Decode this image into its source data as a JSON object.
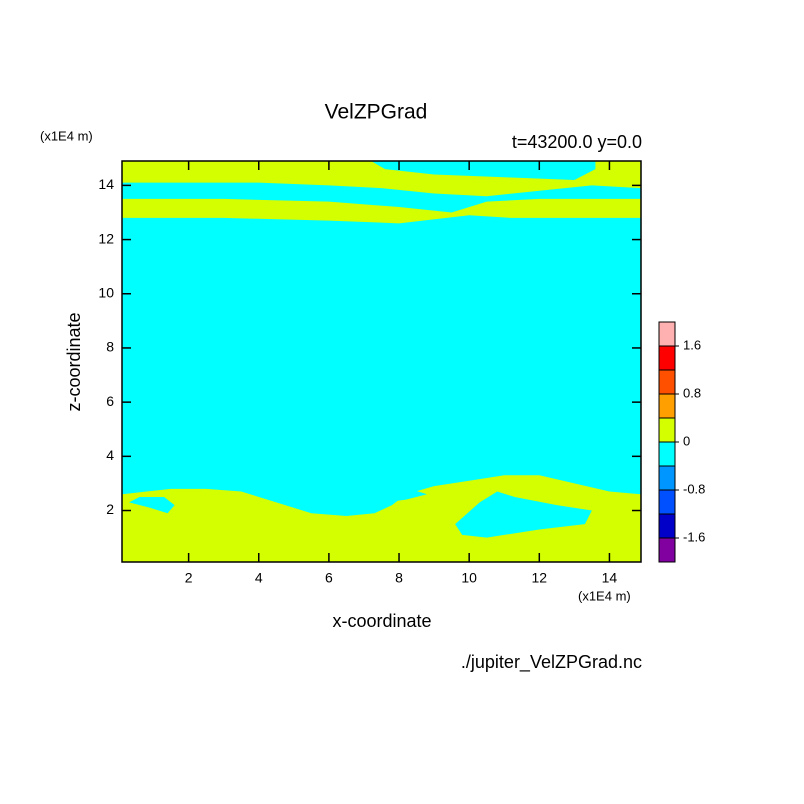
{
  "chart_data": {
    "type": "contour",
    "title": "VelZPGrad",
    "subtitle": "t=43200.0  y=0.0",
    "x_label": "x-coordinate",
    "y_label": "z-coordinate",
    "x_unit": "(x1E4 m)",
    "y_unit": "(x1E4 m)",
    "footer": "./jupiter_VelZPGrad.nc",
    "xlim": [
      0.1,
      14.9
    ],
    "ylim": [
      0.1,
      14.9
    ],
    "xticks": [
      2,
      4,
      6,
      8,
      10,
      12,
      14
    ],
    "yticks": [
      2,
      4,
      6,
      8,
      10,
      12,
      14
    ],
    "background_color": "#00ffff",
    "regions": [
      {
        "color": "#d4ff00",
        "x": [
          0.1,
          0.8,
          1.5,
          2.5,
          3.5,
          4.5,
          5.5,
          6.5,
          7.3,
          7.8,
          8.2,
          9.0,
          10.0,
          11.0,
          12.0,
          13.0,
          14.0,
          14.9,
          14.9,
          0.1
        ],
        "z": [
          2.6,
          2.7,
          2.8,
          2.8,
          2.7,
          2.3,
          1.9,
          1.8,
          1.9,
          2.2,
          2.6,
          2.9,
          3.1,
          3.3,
          3.3,
          3.0,
          2.7,
          2.6,
          0.1,
          0.1
        ]
      },
      {
        "color": "#00ffff",
        "x": [
          0.3,
          0.9,
          1.4,
          1.6,
          1.3,
          0.6
        ],
        "z": [
          2.3,
          2.1,
          1.9,
          2.2,
          2.5,
          2.5
        ]
      },
      {
        "color": "#00ffff",
        "x": [
          9.6,
          10.3,
          10.8,
          11.3,
          12.5,
          13.5,
          13.3,
          12.0,
          10.5,
          9.8
        ],
        "z": [
          1.5,
          2.3,
          2.7,
          2.5,
          2.2,
          2.0,
          1.5,
          1.3,
          1.0,
          1.1
        ]
      },
      {
        "color": "#00ffff",
        "x": [
          7.2,
          7.6,
          8.2,
          8.8,
          8.3,
          7.5
        ],
        "z": [
          2.5,
          2.3,
          2.4,
          2.6,
          2.8,
          2.8
        ]
      },
      {
        "color": "#d4ff00",
        "x": [
          0.1,
          7.2,
          7.6,
          9.0,
          11.0,
          13.0,
          13.6,
          13.6,
          14.9,
          14.9,
          13.5,
          12.0,
          10.5,
          9.0,
          7.5,
          6.0,
          4.0,
          2.0,
          0.1
        ],
        "z": [
          14.9,
          14.9,
          14.6,
          14.4,
          14.3,
          14.2,
          14.6,
          14.9,
          14.9,
          13.9,
          14.0,
          13.8,
          13.6,
          13.7,
          13.9,
          14.0,
          14.1,
          14.1,
          14.1
        ]
      },
      {
        "color": "#d4ff00",
        "x": [
          0.1,
          3.0,
          6.0,
          8.0,
          9.5,
          10.5,
          12.0,
          14.9,
          14.9,
          12.0,
          11.2,
          10.0,
          8.0,
          6.0,
          3.0,
          0.1
        ],
        "z": [
          13.5,
          13.5,
          13.4,
          13.2,
          13.0,
          13.4,
          13.5,
          13.5,
          12.8,
          12.8,
          12.8,
          12.9,
          12.6,
          12.7,
          12.8,
          12.8
        ]
      }
    ],
    "colorbar": {
      "levels": [
        -2.0,
        -1.6,
        -1.2,
        -0.8,
        -0.4,
        0,
        0.4,
        0.8,
        1.2,
        1.6,
        2.0
      ],
      "colors": [
        "#8000a0",
        "#0000c8",
        "#0050ff",
        "#0096ff",
        "#00ffff",
        "#d4ff00",
        "#ffa000",
        "#ff5000",
        "#ff0000",
        "#ffb0b0"
      ],
      "ticks": [
        -1.6,
        -0.8,
        0,
        0.8,
        1.6
      ]
    }
  }
}
